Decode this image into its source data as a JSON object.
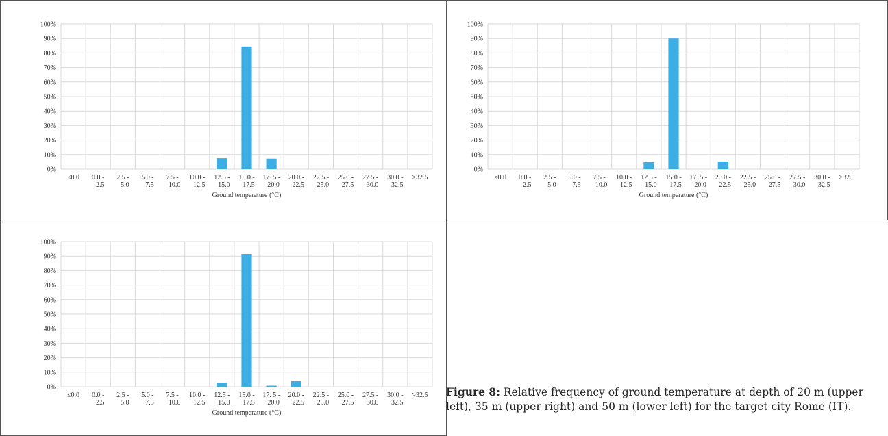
{
  "caption": {
    "label": "Figure 8:",
    "text": " Relative frequency of ground temperature at depth of 20 m (upper left), 35 m (upper right) and 50 m (lower left) for the target city Rome (IT)."
  },
  "colors": {
    "bar": "#3daee3",
    "grid": "#d9d9d9",
    "frame": "#555555",
    "text": "#333333"
  },
  "chart_data": [
    {
      "type": "bar",
      "xlabel": "Ground temperature (°C)",
      "ylabel": "",
      "ylim": [
        0,
        100
      ],
      "yticks": [
        "0%",
        "10%",
        "20%",
        "30%",
        "40%",
        "50%",
        "60%",
        "70%",
        "80%",
        "90%",
        "100%"
      ],
      "grid": true,
      "categories": [
        [
          "≤0.0",
          ""
        ],
        [
          "0.0 -",
          "2.5"
        ],
        [
          "2.5 -",
          "5.0"
        ],
        [
          "5.0 -",
          "7.5"
        ],
        [
          "7.5 -",
          "10.0"
        ],
        [
          "10.0 -",
          "12.5"
        ],
        [
          "12.5 -",
          "15.0"
        ],
        [
          "15.0 -",
          "17.5"
        ],
        [
          "17. 5 -",
          "20.0"
        ],
        [
          "20.0 -",
          "22.5"
        ],
        [
          "22.5 -",
          "25.0"
        ],
        [
          "25.0 -",
          "27.5"
        ],
        [
          "27.5 -",
          "30.0"
        ],
        [
          "30.0 -",
          "32.5"
        ],
        [
          ">32.5",
          ""
        ]
      ],
      "values": [
        0,
        0,
        0,
        0,
        0,
        0,
        7.5,
        84.5,
        7.2,
        0,
        0,
        0,
        0,
        0,
        0
      ]
    },
    {
      "type": "bar",
      "xlabel": "Ground temperature (°C)",
      "ylabel": "",
      "ylim": [
        0,
        100
      ],
      "yticks": [
        "0%",
        "10%",
        "20%",
        "30%",
        "40%",
        "50%",
        "60%",
        "70%",
        "80%",
        "90%",
        "100%"
      ],
      "grid": true,
      "categories": [
        [
          "≤0.0",
          ""
        ],
        [
          "0.0 -",
          "2.5"
        ],
        [
          "2.5 -",
          "5.0"
        ],
        [
          "5.0 -",
          "7.5"
        ],
        [
          "7.5 -",
          "10.0"
        ],
        [
          "10.0 -",
          "12.5"
        ],
        [
          "12.5 -",
          "15.0"
        ],
        [
          "15.0 -",
          "17.5"
        ],
        [
          "17. 5 -",
          "20.0"
        ],
        [
          "20.0 -",
          "22.5"
        ],
        [
          "22.5 -",
          "25.0"
        ],
        [
          "25.0 -",
          "27.5"
        ],
        [
          "27.5 -",
          "30.0"
        ],
        [
          "30.0 -",
          "32.5"
        ],
        [
          ">32.5",
          ""
        ]
      ],
      "values": [
        0,
        0,
        0,
        0,
        0,
        0,
        4.8,
        90.0,
        0,
        5.2,
        0,
        0,
        0,
        0,
        0
      ]
    },
    {
      "type": "bar",
      "xlabel": "Ground temperature (°C)",
      "ylabel": "",
      "ylim": [
        0,
        100
      ],
      "yticks": [
        "0%",
        "10%",
        "20%",
        "30%",
        "40%",
        "50%",
        "60%",
        "70%",
        "80%",
        "90%",
        "100%"
      ],
      "grid": true,
      "categories": [
        [
          "≤0.0",
          ""
        ],
        [
          "0.0 -",
          "2.5"
        ],
        [
          "2.5 -",
          "5.0"
        ],
        [
          "5.0 -",
          "7.5"
        ],
        [
          "7.5 -",
          "10.0"
        ],
        [
          "10.0 -",
          "12.5"
        ],
        [
          "12.5 -",
          "15.0"
        ],
        [
          "15.0 -",
          "17.5"
        ],
        [
          "17. 5 -",
          "20.0"
        ],
        [
          "20.0 -",
          "22.5"
        ],
        [
          "22.5 -",
          "25.0"
        ],
        [
          "25.0 -",
          "27.5"
        ],
        [
          "27.5 -",
          "30.0"
        ],
        [
          "30.0 -",
          "32.5"
        ],
        [
          ">32.5",
          ""
        ]
      ],
      "values": [
        0,
        0,
        0,
        0,
        0,
        0,
        2.8,
        91.5,
        0.7,
        3.8,
        0,
        0,
        0,
        0,
        0
      ]
    }
  ]
}
